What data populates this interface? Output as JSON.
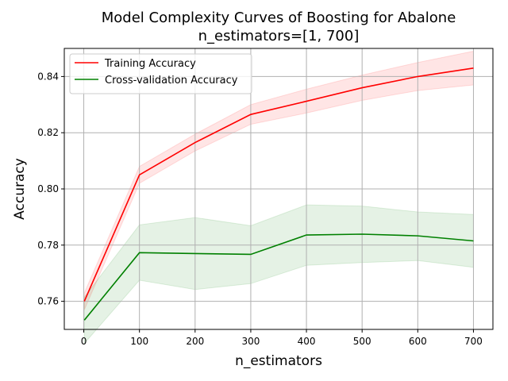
{
  "chart_data": {
    "type": "line",
    "title": "Model Complexity Curves of Boosting for Abalone",
    "subtitle": "n_estimators=[1, 700]",
    "xlabel": "n_estimators",
    "ylabel": "Accuracy",
    "xlim": [
      -35,
      735
    ],
    "ylim": [
      0.75,
      0.85
    ],
    "xticks": [
      0,
      100,
      200,
      300,
      400,
      500,
      600,
      700
    ],
    "xtick_labels": [
      "0",
      "100",
      "200",
      "300",
      "400",
      "500",
      "600",
      "700"
    ],
    "yticks": [
      0.76,
      0.78,
      0.8,
      0.82,
      0.84
    ],
    "ytick_labels": [
      "0.76",
      "0.78",
      "0.80",
      "0.82",
      "0.84"
    ],
    "grid": true,
    "legend_position": "top-left",
    "x": [
      1,
      100,
      200,
      300,
      400,
      500,
      600,
      700
    ],
    "series": [
      {
        "name": "Training Accuracy",
        "color": "#ff0000",
        "values": [
          0.76,
          0.805,
          0.8165,
          0.8265,
          0.8312,
          0.836,
          0.84,
          0.843
        ],
        "lower": [
          0.757,
          0.802,
          0.8135,
          0.823,
          0.827,
          0.8315,
          0.835,
          0.837
        ],
        "upper": [
          0.763,
          0.808,
          0.8195,
          0.83,
          0.8355,
          0.8405,
          0.845,
          0.849
        ]
      },
      {
        "name": "Cross-validation Accuracy",
        "color": "#008000",
        "values": [
          0.7533,
          0.7773,
          0.777,
          0.7767,
          0.7836,
          0.7839,
          0.7833,
          0.7815
        ],
        "lower": [
          0.745,
          0.7675,
          0.7642,
          0.7663,
          0.7728,
          0.7738,
          0.7745,
          0.7721
        ],
        "upper": [
          0.7615,
          0.7872,
          0.7898,
          0.7869,
          0.7943,
          0.7939,
          0.7918,
          0.7909
        ]
      }
    ]
  }
}
